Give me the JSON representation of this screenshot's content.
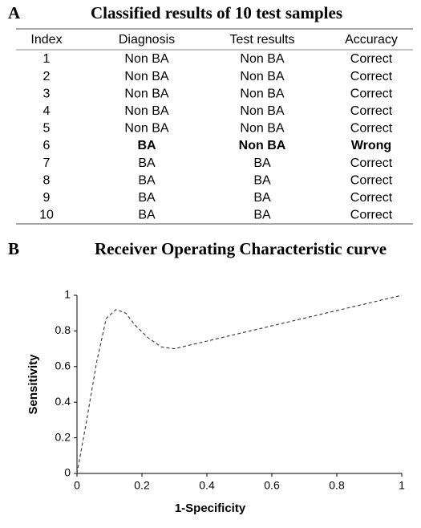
{
  "table": {
    "panel_label": "A",
    "title": "Classified results of 10 test samples",
    "columns": [
      "Index",
      "Diagnosis",
      "Test results",
      "Accuracy"
    ],
    "rows": [
      [
        "1",
        "Non BA",
        "Non BA",
        "Correct"
      ],
      [
        "2",
        "Non BA",
        "Non BA",
        "Correct"
      ],
      [
        "3",
        "Non BA",
        "Non BA",
        "Correct"
      ],
      [
        "4",
        "Non BA",
        "Non BA",
        "Correct"
      ],
      [
        "5",
        "Non BA",
        "Non BA",
        "Correct"
      ],
      [
        "6",
        "BA",
        "Non BA",
        "Wrong"
      ],
      [
        "7",
        "BA",
        "BA",
        "Correct"
      ],
      [
        "8",
        "BA",
        "BA",
        "Correct"
      ],
      [
        "9",
        "BA",
        "BA",
        "Correct"
      ],
      [
        "10",
        "BA",
        "BA",
        "Correct"
      ]
    ]
  },
  "chart_data": {
    "type": "line",
    "panel_label": "B",
    "title": "Receiver Operating Characteristic curve",
    "x_label": "1-Specificity",
    "y_label": "Sensitivity",
    "x": [
      0,
      0.03,
      0.06,
      0.09,
      0.12,
      0.15,
      0.18,
      0.22,
      0.26,
      0.3,
      1
    ],
    "series": [
      {
        "color": "#444444",
        "values": [
          0,
          0.3,
          0.62,
          0.87,
          0.92,
          0.9,
          0.83,
          0.76,
          0.71,
          0.7,
          1
        ]
      }
    ],
    "xlim": [
      0,
      1
    ],
    "ylim": [
      0,
      1
    ],
    "xticks": [
      0,
      0.2,
      0.4,
      0.6,
      0.8,
      1
    ],
    "yticks": [
      0,
      0.2,
      0.4,
      0.6,
      0.8,
      1
    ],
    "dashed": true,
    "grid": false
  }
}
